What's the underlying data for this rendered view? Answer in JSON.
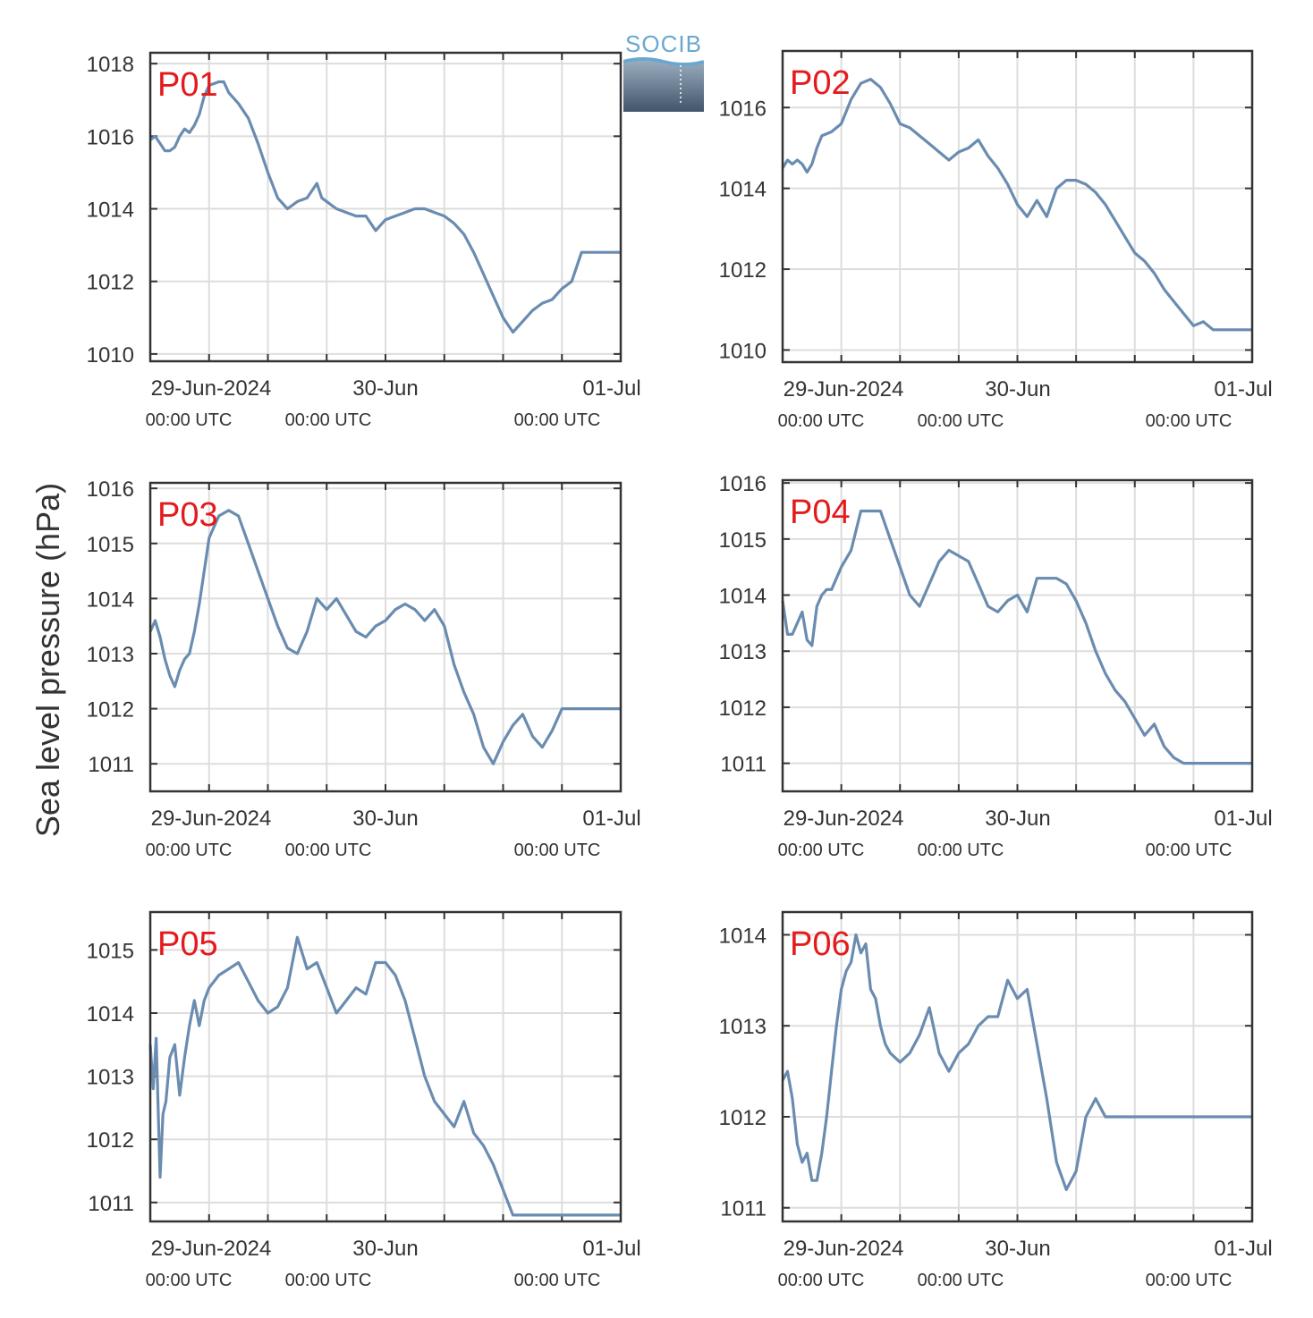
{
  "ylabel": "Sea level pressure (hPa)",
  "logo_text": "SOCIB",
  "colors": {
    "line": "#6a8cb0",
    "panel_label": "#e41a1c",
    "grid": "#dddddd",
    "axis": "#333333"
  },
  "x_tick_top": [
    "29-Jun-2024",
    "30-Jun",
    "01-Jul"
  ],
  "x_tick_bottom": [
    "00:00 UTC",
    "00:00 UTC",
    "00:00 UTC"
  ],
  "chart_data": [
    {
      "type": "line",
      "label": "P01",
      "xlim": [
        0,
        48
      ],
      "ylim": [
        1009.8,
        1018.3
      ],
      "yticks": [
        1010,
        1012,
        1014,
        1016,
        1018
      ],
      "series": [
        {
          "x": [
            0,
            0.5,
            1,
            1.5,
            2,
            2.5,
            3,
            3.5,
            4,
            4.5,
            5,
            5.5,
            6,
            7,
            7.5,
            8,
            9,
            10,
            11,
            12,
            13,
            14,
            15,
            16,
            17,
            17.5,
            18,
            18.5,
            19,
            20,
            21,
            22,
            23,
            24,
            25,
            26,
            27,
            28,
            29,
            30,
            31,
            32,
            33,
            34,
            35,
            36,
            37,
            38,
            39,
            40,
            41,
            42,
            43,
            44,
            45,
            46,
            47,
            48
          ],
          "y": [
            1015.9,
            1016.0,
            1015.8,
            1015.6,
            1015.6,
            1015.7,
            1016.0,
            1016.2,
            1016.1,
            1016.3,
            1016.6,
            1017.1,
            1017.4,
            1017.5,
            1017.5,
            1017.2,
            1016.9,
            1016.5,
            1015.8,
            1015.0,
            1014.3,
            1014.0,
            1014.2,
            1014.3,
            1014.7,
            1014.3,
            1014.2,
            1014.1,
            1014.0,
            1013.9,
            1013.8,
            1013.8,
            1013.4,
            1013.7,
            1013.8,
            1013.9,
            1014.0,
            1014.0,
            1013.9,
            1013.8,
            1013.6,
            1013.3,
            1012.8,
            1012.2,
            1011.6,
            1011.0,
            1010.6,
            1010.9,
            1011.2,
            1011.4,
            1011.5,
            1011.8,
            1012.0,
            1012.8,
            1012.8,
            1012.8,
            1012.8,
            1012.8
          ]
        }
      ]
    },
    {
      "type": "line",
      "label": "P02",
      "xlim": [
        0,
        48
      ],
      "ylim": [
        1009.7,
        1017.4
      ],
      "yticks": [
        1010,
        1012,
        1014,
        1016
      ],
      "series": [
        {
          "x": [
            0,
            0.5,
            1,
            1.5,
            2,
            2.5,
            3,
            3.5,
            4,
            5,
            6,
            7,
            8,
            9,
            10,
            11,
            12,
            13,
            14,
            15,
            16,
            17,
            18,
            19,
            20,
            21,
            22,
            23,
            24,
            25,
            26,
            27,
            28,
            29,
            30,
            31,
            32,
            33,
            34,
            35,
            36,
            37,
            38,
            39,
            40,
            41,
            42,
            43,
            44,
            45,
            46,
            47,
            48
          ],
          "y": [
            1014.5,
            1014.7,
            1014.6,
            1014.7,
            1014.6,
            1014.4,
            1014.6,
            1015.0,
            1015.3,
            1015.4,
            1015.6,
            1016.2,
            1016.6,
            1016.7,
            1016.5,
            1016.1,
            1015.6,
            1015.5,
            1015.3,
            1015.1,
            1014.9,
            1014.7,
            1014.9,
            1015.0,
            1015.2,
            1014.8,
            1014.5,
            1014.1,
            1013.6,
            1013.3,
            1013.7,
            1013.3,
            1014.0,
            1014.2,
            1014.2,
            1014.1,
            1013.9,
            1013.6,
            1013.2,
            1012.8,
            1012.4,
            1012.2,
            1011.9,
            1011.5,
            1011.2,
            1010.9,
            1010.6,
            1010.7,
            1010.5,
            1010.5,
            1010.5,
            1010.5,
            1010.5
          ]
        }
      ]
    },
    {
      "type": "line",
      "label": "P03",
      "xlim": [
        0,
        48
      ],
      "ylim": [
        1010.5,
        1016.1
      ],
      "yticks": [
        1011,
        1012,
        1013,
        1014,
        1015,
        1016
      ],
      "series": [
        {
          "x": [
            0,
            0.5,
            1,
            1.5,
            2,
            2.5,
            3,
            3.5,
            4,
            4.5,
            5,
            5.5,
            6,
            7,
            8,
            9,
            10,
            11,
            12,
            13,
            14,
            15,
            16,
            17,
            18,
            19,
            20,
            21,
            22,
            23,
            24,
            25,
            26,
            27,
            28,
            29,
            30,
            31,
            32,
            33,
            34,
            35,
            36,
            37,
            38,
            39,
            40,
            41,
            42,
            43,
            44,
            45,
            46,
            47,
            48
          ],
          "y": [
            1013.4,
            1013.6,
            1013.3,
            1012.9,
            1012.6,
            1012.4,
            1012.7,
            1012.9,
            1013.0,
            1013.4,
            1013.9,
            1014.5,
            1015.1,
            1015.5,
            1015.6,
            1015.5,
            1015.0,
            1014.5,
            1014.0,
            1013.5,
            1013.1,
            1013.0,
            1013.4,
            1014.0,
            1013.8,
            1014.0,
            1013.7,
            1013.4,
            1013.3,
            1013.5,
            1013.6,
            1013.8,
            1013.9,
            1013.8,
            1013.6,
            1013.8,
            1013.5,
            1012.8,
            1012.3,
            1011.9,
            1011.3,
            1011.0,
            1011.4,
            1011.7,
            1011.9,
            1011.5,
            1011.3,
            1011.6,
            1012.0,
            1012.0,
            1012.0,
            1012.0,
            1012.0,
            1012.0,
            1012.0
          ]
        }
      ]
    },
    {
      "type": "line",
      "label": "P04",
      "xlim": [
        0,
        48
      ],
      "ylim": [
        1010.5,
        1016.05
      ],
      "yticks": [
        1011,
        1012,
        1013,
        1014,
        1015,
        1016
      ],
      "series": [
        {
          "x": [
            0,
            0.5,
            1,
            1.5,
            2,
            2.5,
            3,
            3.5,
            4,
            4.5,
            5,
            5.5,
            6,
            7,
            8,
            9,
            10,
            11,
            12,
            13,
            14,
            15,
            16,
            17,
            18,
            19,
            20,
            21,
            22,
            23,
            24,
            25,
            26,
            27,
            28,
            29,
            30,
            31,
            32,
            33,
            34,
            35,
            36,
            37,
            38,
            39,
            40,
            41,
            42,
            43,
            44,
            45,
            46,
            47,
            48
          ],
          "y": [
            1013.9,
            1013.3,
            1013.3,
            1013.5,
            1013.7,
            1013.2,
            1013.1,
            1013.8,
            1014.0,
            1014.1,
            1014.1,
            1014.3,
            1014.5,
            1014.8,
            1015.5,
            1015.5,
            1015.5,
            1015.0,
            1014.5,
            1014.0,
            1013.8,
            1014.2,
            1014.6,
            1014.8,
            1014.7,
            1014.6,
            1014.2,
            1013.8,
            1013.7,
            1013.9,
            1014.0,
            1013.7,
            1014.3,
            1014.3,
            1014.3,
            1014.2,
            1013.9,
            1013.5,
            1013.0,
            1012.6,
            1012.3,
            1012.1,
            1011.8,
            1011.5,
            1011.7,
            1011.3,
            1011.1,
            1011.0,
            1011.0,
            1011.0,
            1011.0,
            1011.0,
            1011.0,
            1011.0,
            1011.0
          ]
        }
      ]
    },
    {
      "type": "line",
      "label": "P05",
      "xlim": [
        0,
        48
      ],
      "ylim": [
        1010.7,
        1015.6
      ],
      "yticks": [
        1011,
        1012,
        1013,
        1014,
        1015
      ],
      "series": [
        {
          "x": [
            0,
            0.3,
            0.6,
            1,
            1.3,
            1.6,
            2,
            2.5,
            3,
            3.5,
            4,
            4.5,
            5,
            5.5,
            6,
            7,
            8,
            9,
            10,
            11,
            12,
            13,
            14,
            15,
            16,
            17,
            18,
            19,
            20,
            21,
            22,
            23,
            24,
            25,
            26,
            27,
            28,
            29,
            30,
            31,
            32,
            33,
            34,
            35,
            36,
            37,
            38,
            39,
            40,
            41,
            42,
            43,
            44,
            45,
            46,
            47,
            48
          ],
          "y": [
            1013.5,
            1012.8,
            1013.6,
            1011.4,
            1012.4,
            1012.6,
            1013.3,
            1013.5,
            1012.7,
            1013.3,
            1013.8,
            1014.2,
            1013.8,
            1014.2,
            1014.4,
            1014.6,
            1014.7,
            1014.8,
            1014.5,
            1014.2,
            1014.0,
            1014.1,
            1014.4,
            1015.2,
            1014.7,
            1014.8,
            1014.4,
            1014.0,
            1014.2,
            1014.4,
            1014.3,
            1014.8,
            1014.8,
            1014.6,
            1014.2,
            1013.6,
            1013.0,
            1012.6,
            1012.4,
            1012.2,
            1012.6,
            1012.1,
            1011.9,
            1011.6,
            1011.2,
            1010.8,
            1010.8,
            1010.8,
            1010.8,
            1010.8,
            1010.8,
            1010.8,
            1010.8,
            1010.8,
            1010.8,
            1010.8,
            1010.8
          ]
        }
      ]
    },
    {
      "type": "line",
      "label": "P06",
      "xlim": [
        0,
        48
      ],
      "ylim": [
        1010.85,
        1014.25
      ],
      "yticks": [
        1011,
        1012,
        1013,
        1014
      ],
      "series": [
        {
          "x": [
            0,
            0.5,
            1,
            1.5,
            2,
            2.5,
            3,
            3.5,
            4,
            4.5,
            5,
            5.5,
            6,
            6.5,
            7,
            7.5,
            8,
            8.5,
            9,
            9.5,
            10,
            10.5,
            11,
            12,
            13,
            14,
            15,
            16,
            17,
            18,
            19,
            20,
            21,
            22,
            23,
            24,
            25,
            26,
            27,
            28,
            29,
            30,
            31,
            32,
            33,
            34,
            35,
            36,
            37,
            38,
            39,
            40,
            41,
            42,
            43,
            44,
            45,
            46,
            47,
            48
          ],
          "y": [
            1012.4,
            1012.5,
            1012.2,
            1011.7,
            1011.5,
            1011.6,
            1011.3,
            1011.3,
            1011.6,
            1012.0,
            1012.5,
            1013.0,
            1013.4,
            1013.6,
            1013.7,
            1014.0,
            1013.8,
            1013.9,
            1013.4,
            1013.3,
            1013.0,
            1012.8,
            1012.7,
            1012.6,
            1012.7,
            1012.9,
            1013.2,
            1012.7,
            1012.5,
            1012.7,
            1012.8,
            1013.0,
            1013.1,
            1013.1,
            1013.5,
            1013.3,
            1013.4,
            1012.8,
            1012.2,
            1011.5,
            1011.2,
            1011.4,
            1012.0,
            1012.2,
            1012.0,
            1012.0,
            1012.0,
            1012.0,
            1012.0,
            1012.0,
            1012.0,
            1012.0,
            1012.0,
            1012.0,
            1012.0,
            1012.0,
            1012.0,
            1012.0,
            1012.0,
            1012.0
          ]
        }
      ]
    }
  ]
}
